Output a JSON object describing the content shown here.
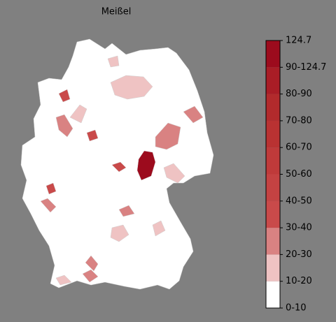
{
  "title": "Meißel",
  "colorbar": {
    "labels": [
      "0-10",
      "10-20",
      "20-30",
      "30-40",
      "40-50",
      "50-60",
      "60-70",
      "70-80",
      "80-90",
      "90-124.7",
      "124.7"
    ],
    "colors": [
      "#ffffff",
      "#efc3c3",
      "#d98282",
      "#c94a4a",
      "#c44242",
      "#bf3a3a",
      "#b93232",
      "#b22a2c",
      "#a91d26",
      "#9c0b1d"
    ]
  }
}
